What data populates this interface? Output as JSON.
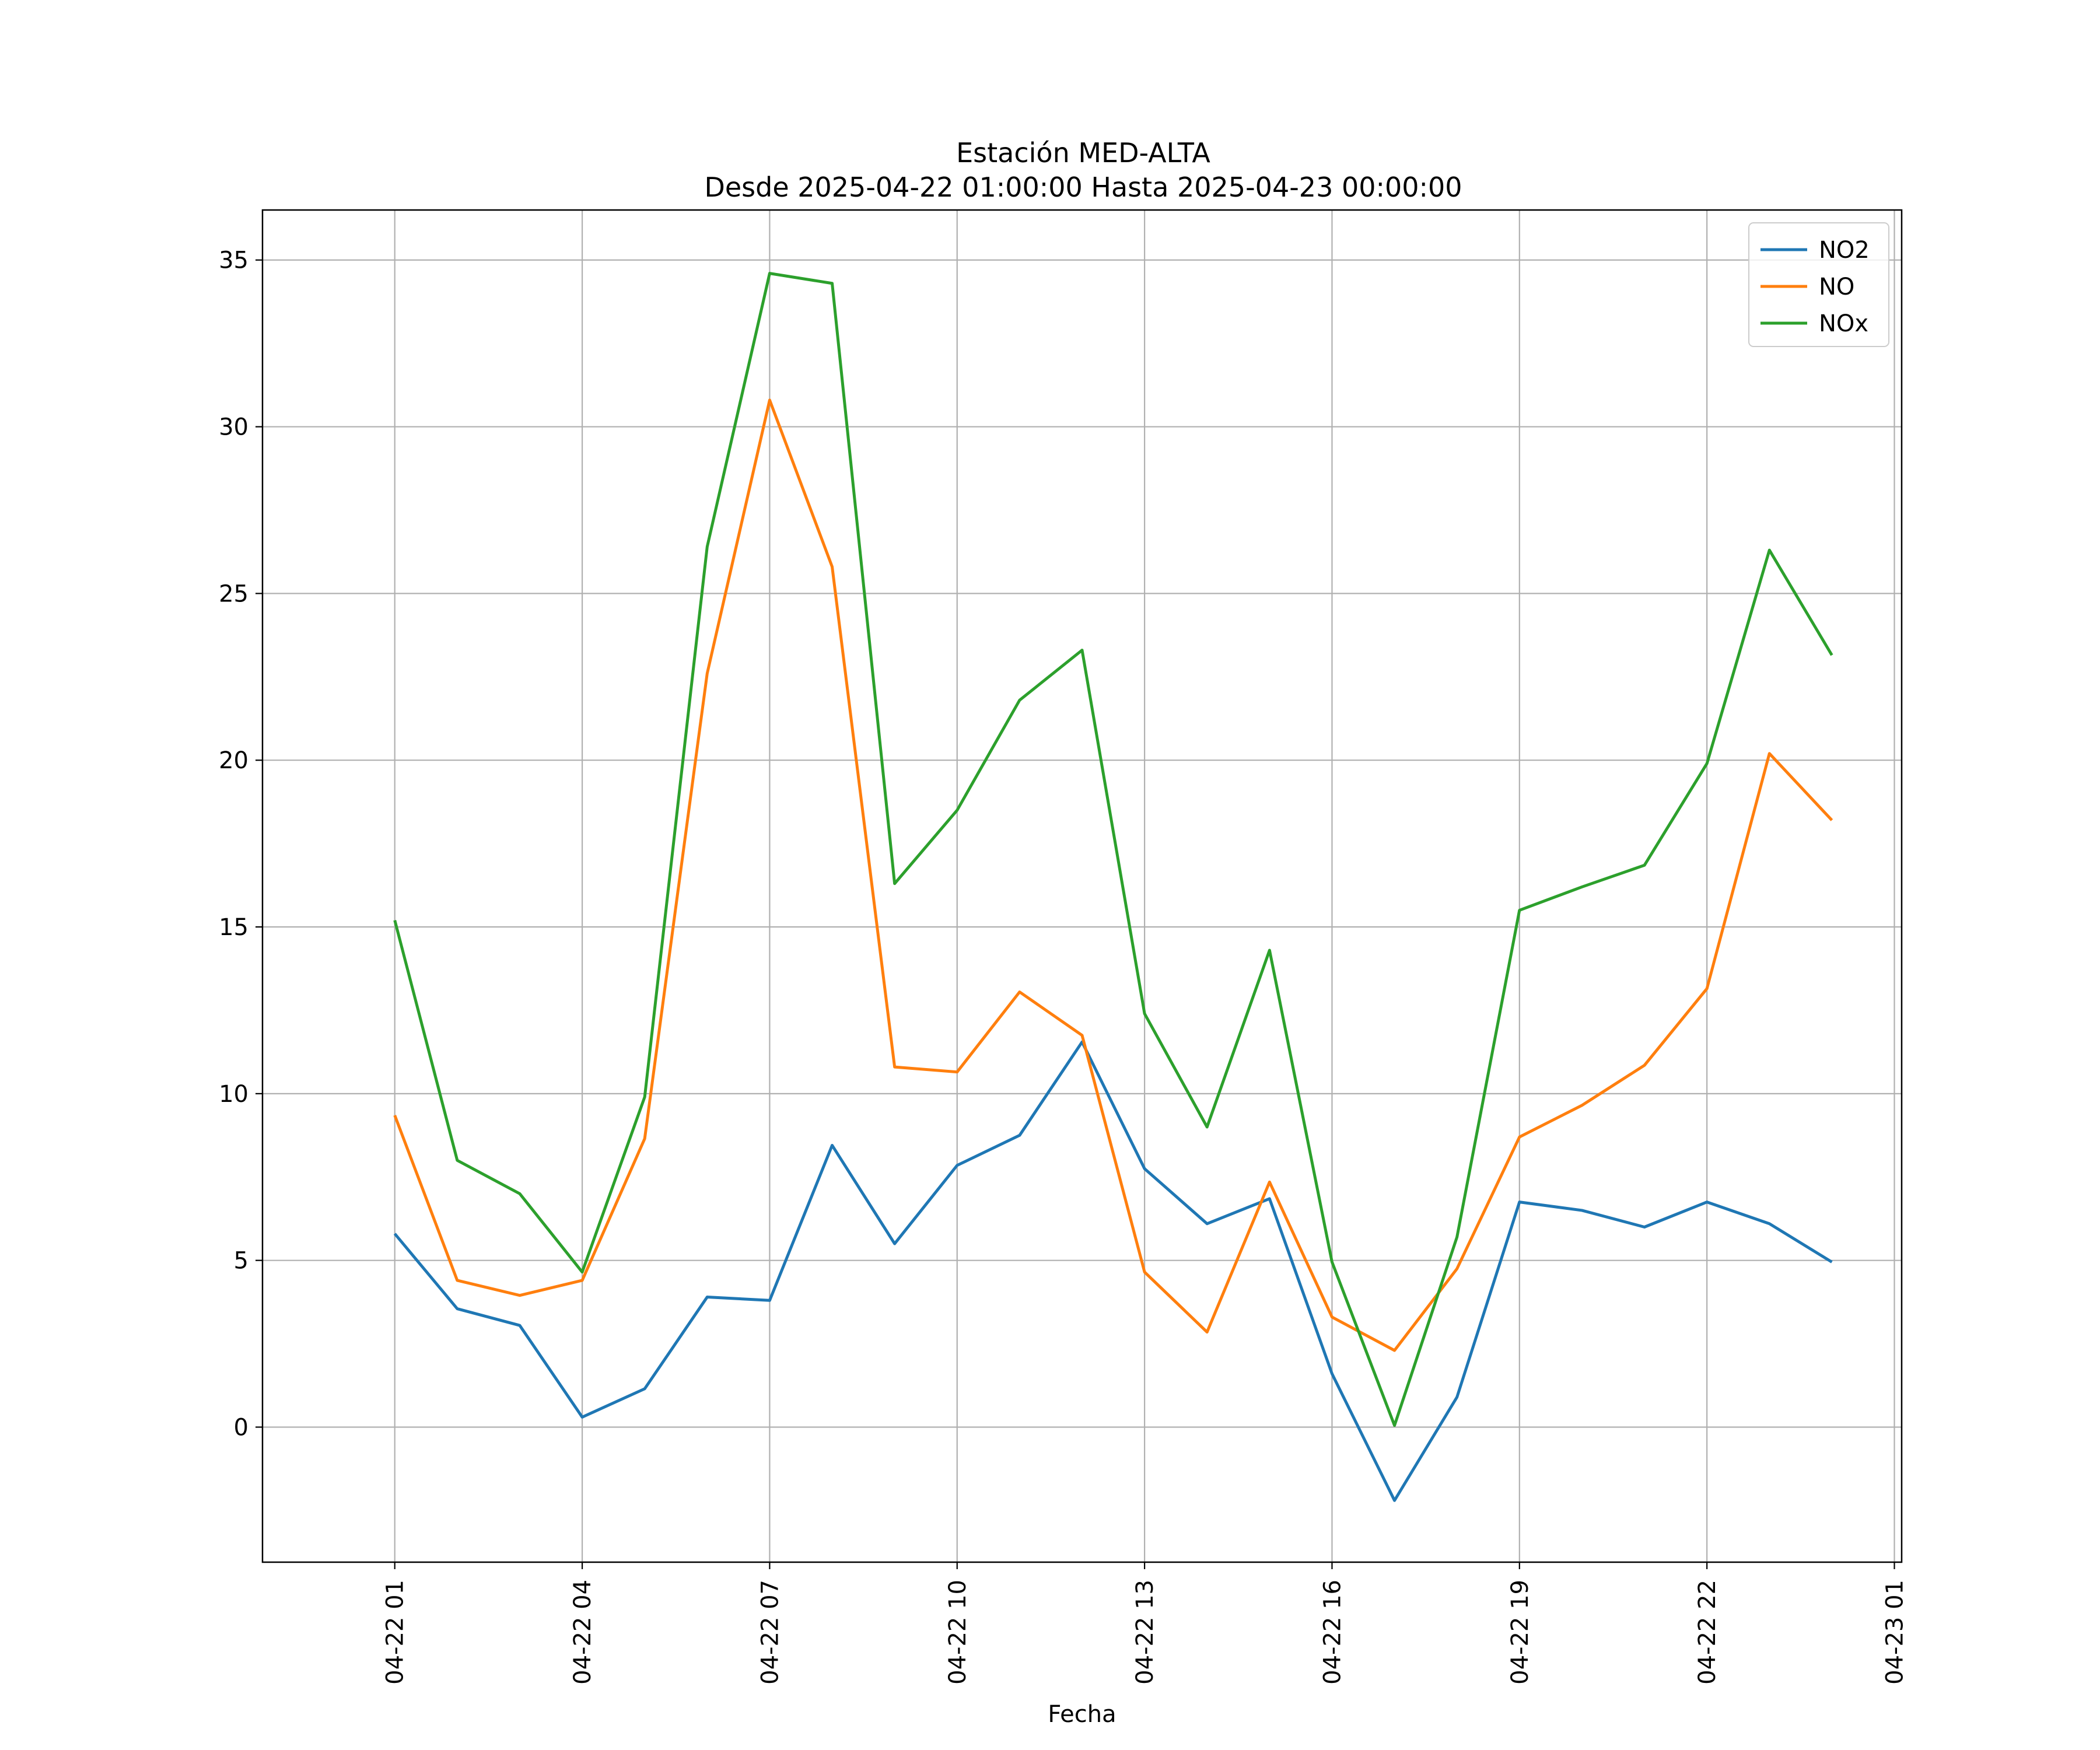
{
  "chart_data": {
    "type": "line",
    "title": "Estación MED-ALTA",
    "subtitle": "Desde 2025-04-22 01:00:00 Hasta 2025-04-23 00:00:00",
    "xlabel": "Fecha",
    "ylabel": "",
    "x": [
      "2025-04-22 01:00",
      "2025-04-22 02:00",
      "2025-04-22 03:00",
      "2025-04-22 04:00",
      "2025-04-22 05:00",
      "2025-04-22 06:00",
      "2025-04-22 07:00",
      "2025-04-22 08:00",
      "2025-04-22 09:00",
      "2025-04-22 10:00",
      "2025-04-22 11:00",
      "2025-04-22 12:00",
      "2025-04-22 13:00",
      "2025-04-22 14:00",
      "2025-04-22 15:00",
      "2025-04-22 16:00",
      "2025-04-22 17:00",
      "2025-04-22 18:00",
      "2025-04-22 19:00",
      "2025-04-22 20:00",
      "2025-04-22 21:00",
      "2025-04-22 22:00",
      "2025-04-22 23:00",
      "2025-04-23 00:00"
    ],
    "xlim": [
      "2025-04-21 22:53",
      "2025-04-23 01:07"
    ],
    "ylim": [
      -4.05,
      36.5
    ],
    "yticks": [
      0,
      5,
      10,
      15,
      20,
      25,
      30,
      35
    ],
    "xticks": [
      "04-22 01",
      "04-22 04",
      "04-22 07",
      "04-22 10",
      "04-22 13",
      "04-22 16",
      "04-22 19",
      "04-22 22",
      "04-23 01"
    ],
    "grid": true,
    "legend_position": "upper right",
    "series": [
      {
        "name": "NO2",
        "color": "#1f77b4",
        "values": [
          5.8,
          3.55,
          3.05,
          0.3,
          1.15,
          3.9,
          3.8,
          8.45,
          5.5,
          7.85,
          8.75,
          11.55,
          7.75,
          6.1,
          6.85,
          1.6,
          -2.2,
          0.9,
          6.75,
          6.5,
          6.0,
          6.75,
          6.1,
          4.95
        ]
      },
      {
        "name": "NO",
        "color": "#ff7f0e",
        "values": [
          9.35,
          4.4,
          3.95,
          4.4,
          8.65,
          22.6,
          30.8,
          25.8,
          10.8,
          10.65,
          13.05,
          11.75,
          4.65,
          2.85,
          7.35,
          3.3,
          2.3,
          4.75,
          8.7,
          9.65,
          10.85,
          13.15,
          20.2,
          18.2
        ]
      },
      {
        "name": "NOx",
        "color": "#2ca02c",
        "values": [
          15.2,
          8.0,
          7.0,
          4.65,
          9.9,
          26.4,
          34.6,
          34.3,
          16.3,
          18.5,
          21.8,
          23.3,
          12.4,
          9.0,
          14.3,
          4.95,
          0.05,
          5.7,
          15.5,
          16.2,
          16.85,
          19.9,
          26.3,
          23.15
        ]
      }
    ]
  }
}
